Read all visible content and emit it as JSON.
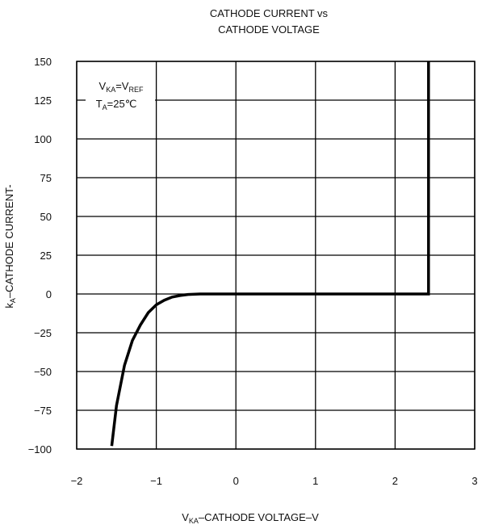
{
  "chart_data": {
    "type": "line",
    "title_line1": "CATHODE CURRENT vs",
    "title_line2": "CATHODE VOLTAGE",
    "xlabel": {
      "main": "V",
      "sub": "KA",
      "rest": "–CATHODE VOLTAGE–V"
    },
    "ylabel": {
      "main": "k",
      "sub": "A",
      "rest": "–CATHODE CURRENT-"
    },
    "xlim": [
      -2,
      3
    ],
    "ylim": [
      -100,
      150
    ],
    "x_ticks": [
      -2,
      -1,
      0,
      1,
      2,
      3
    ],
    "x_tick_labels": [
      "−2",
      "−1",
      "0",
      "1",
      "2",
      "3"
    ],
    "y_ticks": [
      150,
      125,
      100,
      75,
      50,
      25,
      0,
      -25,
      -50,
      -75,
      -100
    ],
    "y_tick_labels": [
      "150",
      "125",
      "100",
      "75",
      "50",
      "25",
      "0",
      "−25",
      "−50",
      "−75",
      "−100"
    ],
    "grid": true,
    "annotation": {
      "line1": {
        "main": "V",
        "sub": "KA",
        "mid": "=V",
        "sub2": "REF"
      },
      "line2": {
        "main": "T",
        "sub": "A",
        "rest": "=25℃"
      }
    },
    "series": [
      {
        "color": "#000000",
        "points": [
          [
            -1.56,
            -98
          ],
          [
            -1.5,
            -72
          ],
          [
            -1.4,
            -46
          ],
          [
            -1.3,
            -30
          ],
          [
            -1.2,
            -20
          ],
          [
            -1.1,
            -12
          ],
          [
            -1.0,
            -7
          ],
          [
            -0.9,
            -4
          ],
          [
            -0.8,
            -2
          ],
          [
            -0.7,
            -1
          ],
          [
            -0.6,
            -0.3
          ],
          [
            -0.45,
            0
          ],
          [
            0.0,
            0
          ],
          [
            1.0,
            0
          ],
          [
            2.0,
            0
          ],
          [
            2.42,
            0
          ],
          [
            2.42,
            150
          ]
        ]
      }
    ]
  }
}
